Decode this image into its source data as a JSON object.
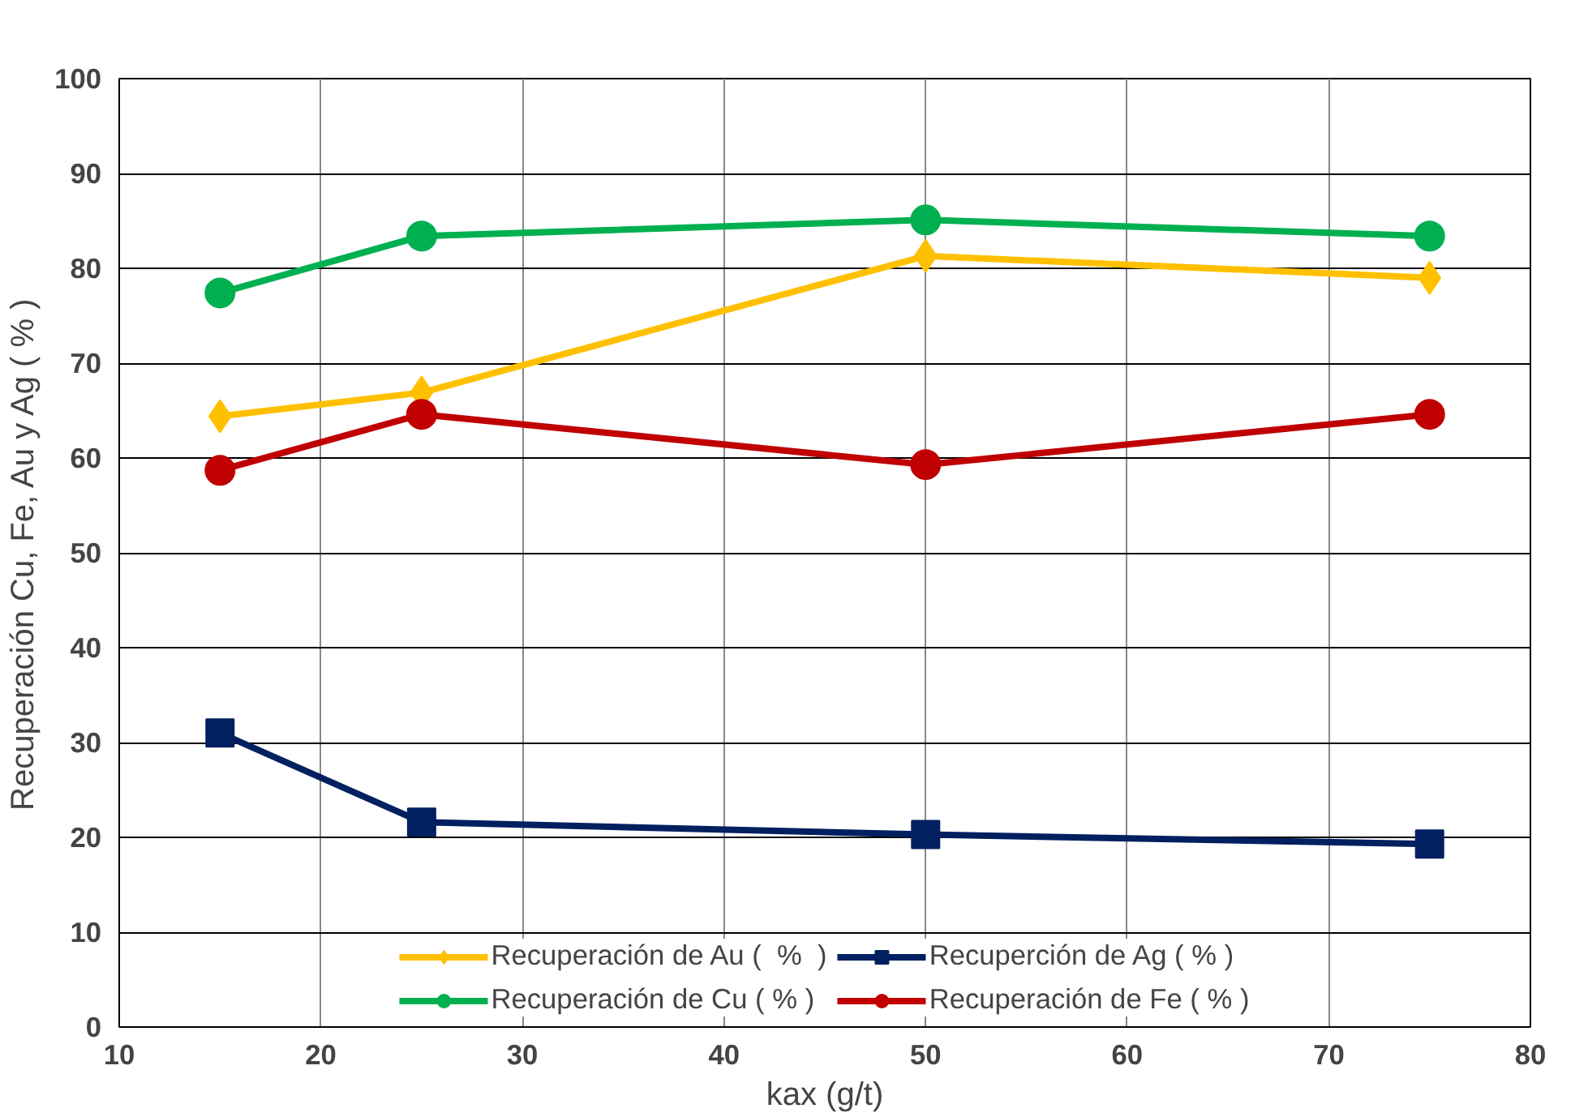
{
  "chart_data": {
    "type": "line",
    "xlabel": "kax (g/t)",
    "ylabel": "Recuperación Cu, Fe, Au y Ag ( % )",
    "x": [
      15,
      25,
      50,
      75
    ],
    "series": [
      {
        "name": "Recuperación de Au (  %  )",
        "color": "#ffc000",
        "marker": "diamond",
        "values": [
          64.4,
          66.9,
          81.3,
          79.0
        ]
      },
      {
        "name": "Recuperción de Ag ( % )",
        "color": "#002060",
        "marker": "square",
        "values": [
          31.0,
          21.6,
          20.3,
          19.3
        ]
      },
      {
        "name": "Recuperación de Cu ( % )",
        "color": "#00b050",
        "marker": "circle",
        "values": [
          77.4,
          83.4,
          85.1,
          83.4
        ]
      },
      {
        "name": "Recuperación de Fe ( % )",
        "color": "#c00000",
        "marker": "circle",
        "values": [
          58.7,
          64.6,
          59.3,
          64.6
        ]
      }
    ],
    "xlim": [
      10,
      80
    ],
    "xticks": [
      10,
      20,
      30,
      40,
      50,
      60,
      70,
      80
    ],
    "ylim": [
      0,
      100
    ],
    "yticks": [
      0,
      10,
      20,
      30,
      40,
      50,
      60,
      70,
      80,
      90,
      100
    ],
    "grid": true,
    "legend": "bottom",
    "line_style": "solid"
  }
}
